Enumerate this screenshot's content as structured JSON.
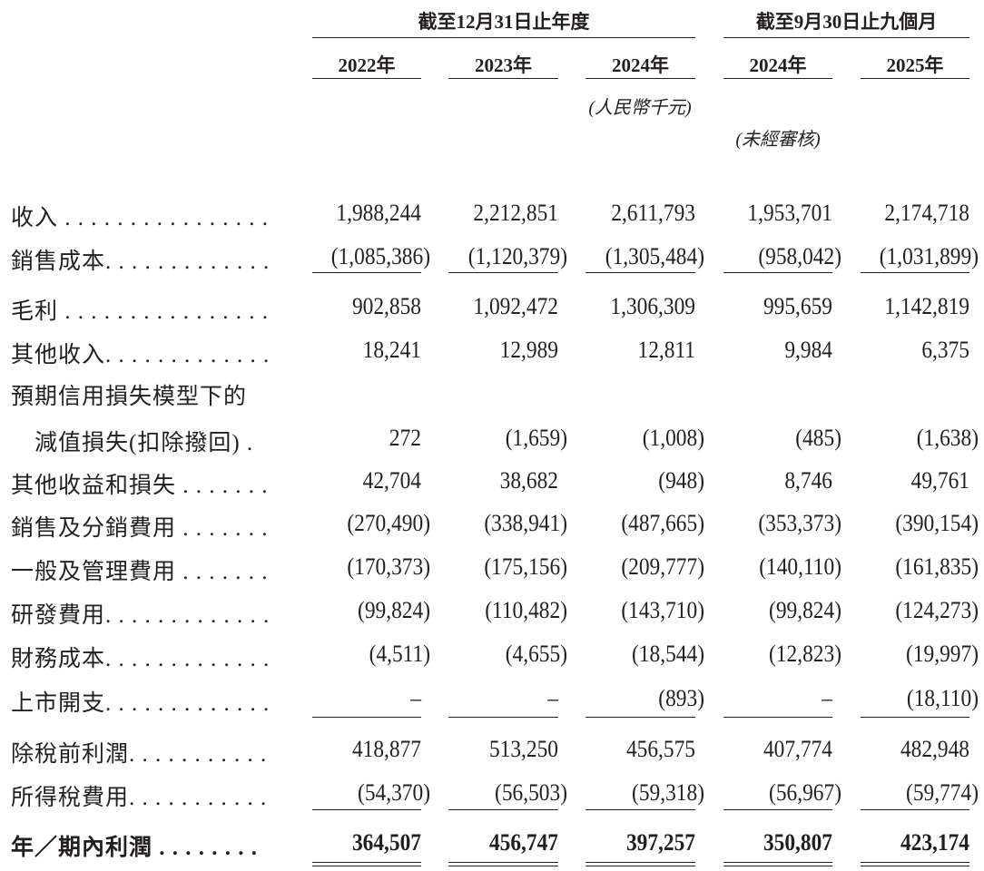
{
  "header": {
    "group_fy": "截至12月31日止年度",
    "group_9m": "截至9月30日止九個月",
    "years": [
      "2022年",
      "2023年",
      "2024年",
      "2024年",
      "2025年"
    ],
    "currency_note": "(人民幣千元)",
    "unaudited_note": "(未經審核)"
  },
  "rows": [
    {
      "label": "收入 . . . . . . . . . . . . . . . .",
      "values": [
        "1,988,244",
        "2,212,851",
        "2,611,793",
        "1,953,701",
        "2,174,718"
      ]
    },
    {
      "label": "銷售成本. . . . . . . . . . . . .",
      "values": [
        "(1,085,386)",
        "(1,120,379)",
        "(1,305,484)",
        "(958,042)",
        "(1,031,899)"
      ]
    },
    {
      "label": "毛利 . . . . . . . . . . . . . . . .",
      "values": [
        "902,858",
        "1,092,472",
        "1,306,309",
        "995,659",
        "1,142,819"
      ]
    },
    {
      "label": "其他收入. . . . . . . . . . . . .",
      "values": [
        "18,241",
        "12,989",
        "12,811",
        "9,984",
        "6,375"
      ]
    },
    {
      "label": "預期信用損失模型下的",
      "values": [
        "",
        "",
        "",
        "",
        ""
      ]
    },
    {
      "label": "　減值損失(扣除撥回) .",
      "values": [
        "272",
        "(1,659)",
        "(1,008)",
        "(485)",
        "(1,638)"
      ]
    },
    {
      "label": "其他收益和損失 . . . . . . .",
      "values": [
        "42,704",
        "38,682",
        "(948)",
        "8,746",
        "49,761"
      ]
    },
    {
      "label": "銷售及分銷費用 . . . . . . .",
      "values": [
        "(270,490)",
        "(338,941)",
        "(487,665)",
        "(353,373)",
        "(390,154)"
      ]
    },
    {
      "label": "一般及管理費用 . . . . . . .",
      "values": [
        "(170,373)",
        "(175,156)",
        "(209,777)",
        "(140,110)",
        "(161,835)"
      ]
    },
    {
      "label": "研發費用. . . . . . . . . . . . .",
      "values": [
        "(99,824)",
        "(110,482)",
        "(143,710)",
        "(99,824)",
        "(124,273)"
      ]
    },
    {
      "label": "財務成本. . . . . . . . . . . . .",
      "values": [
        "(4,511)",
        "(4,655)",
        "(18,544)",
        "(12,823)",
        "(19,997)"
      ]
    },
    {
      "label": "上市開支. . . . . . . . . . . . .",
      "values": [
        "–",
        "–",
        "(893)",
        "–",
        "(18,110)"
      ]
    },
    {
      "label": "除稅前利潤. . . . . . . . . . .",
      "values": [
        "418,877",
        "513,250",
        "456,575",
        "407,774",
        "482,948"
      ]
    },
    {
      "label": "所得稅費用. . . . . . . . . . .",
      "values": [
        "(54,370)",
        "(56,503)",
        "(59,318)",
        "(56,967)",
        "(59,774)"
      ]
    },
    {
      "label": "年／期內利潤 . . . . . . . .",
      "values": [
        "364,507",
        "456,747",
        "397,257",
        "350,807",
        "423,174"
      ]
    }
  ]
}
